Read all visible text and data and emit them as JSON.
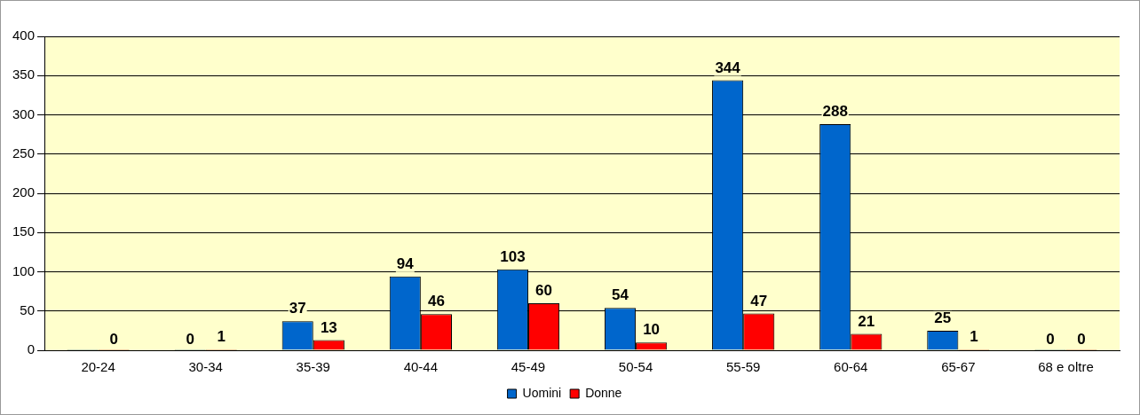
{
  "chart_data": {
    "type": "bar",
    "categories": [
      "20-24",
      "30-34",
      "35-39",
      "40-44",
      "45-49",
      "50-54",
      "55-59",
      "60-64",
      "65-67",
      "68 e oltre"
    ],
    "series": [
      {
        "name": "Uomini",
        "color": "#0066cc",
        "values": [
          0,
          0,
          37,
          94,
          103,
          54,
          344,
          288,
          25,
          0
        ],
        "value_labels": [
          null,
          "0",
          "37",
          "94",
          "103",
          "54",
          "344",
          "288",
          "25",
          "0"
        ]
      },
      {
        "name": "Donne",
        "color": "#ff0000",
        "values": [
          0,
          1,
          13,
          46,
          60,
          10,
          47,
          21,
          1,
          0
        ],
        "value_labels": [
          "0",
          "1",
          "13",
          "46",
          "60",
          "10",
          "47",
          "21",
          "1",
          "0"
        ]
      }
    ],
    "ylim": [
      0,
      400
    ],
    "yticks": [
      0,
      50,
      100,
      150,
      200,
      250,
      300,
      350,
      400
    ],
    "grid": "y",
    "legend": "bottom"
  }
}
